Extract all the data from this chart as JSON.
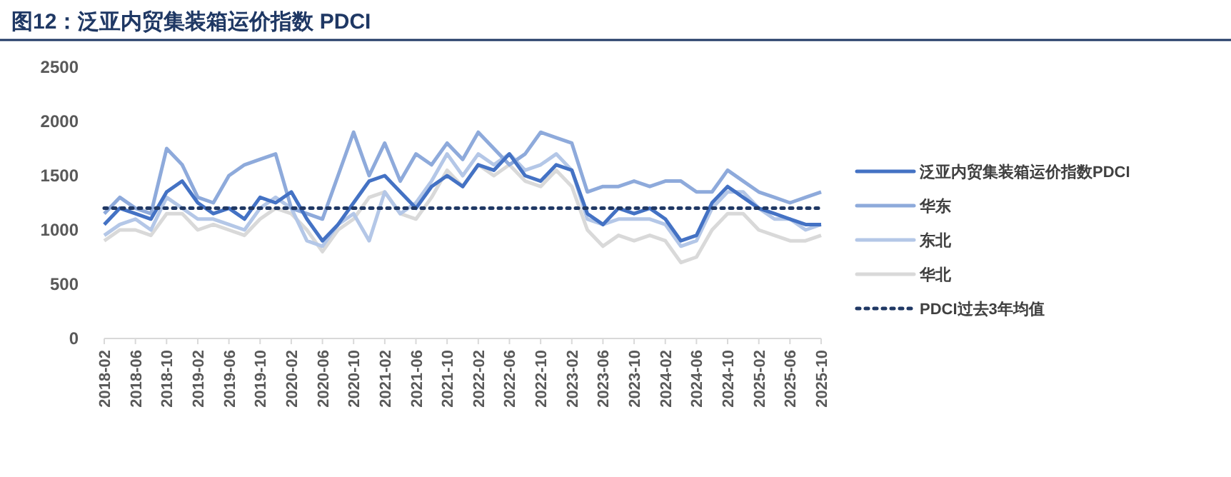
{
  "chart_data": {
    "type": "line",
    "title": "图12：泛亚内贸集装箱运价指数 PDCI",
    "x": [
      "2018-02",
      "2018-04",
      "2018-06",
      "2018-08",
      "2018-10",
      "2018-12",
      "2019-02",
      "2019-04",
      "2019-06",
      "2019-08",
      "2019-10",
      "2019-12",
      "2020-02",
      "2020-04",
      "2020-06",
      "2020-08",
      "2020-10",
      "2020-12",
      "2021-02",
      "2021-04",
      "2021-06",
      "2021-08",
      "2021-10",
      "2021-12",
      "2022-02",
      "2022-04",
      "2022-06",
      "2022-08",
      "2022-10",
      "2022-12",
      "2023-02",
      "2023-04",
      "2023-06",
      "2023-08",
      "2023-10",
      "2023-12",
      "2024-02",
      "2024-04",
      "2024-06",
      "2024-08",
      "2024-10",
      "2024-12",
      "2025-02",
      "2025-04",
      "2025-06",
      "2025-08",
      "2025-10"
    ],
    "series": [
      {
        "name": "泛亚内贸集装箱运价指数PDCI",
        "color": "#4472c4",
        "values": [
          1050,
          1200,
          1150,
          1100,
          1350,
          1450,
          1250,
          1150,
          1200,
          1100,
          1300,
          1250,
          1350,
          1100,
          900,
          1050,
          1250,
          1450,
          1500,
          1350,
          1200,
          1400,
          1500,
          1400,
          1600,
          1550,
          1700,
          1500,
          1450,
          1600,
          1550,
          1150,
          1050,
          1200,
          1150,
          1200,
          1100,
          900,
          950,
          1250,
          1400,
          1300,
          1200,
          1150,
          1100,
          1050,
          1050
        ]
      },
      {
        "name": "华东",
        "color": "#8eaadb",
        "values": [
          1150,
          1300,
          1200,
          1150,
          1750,
          1600,
          1300,
          1250,
          1500,
          1600,
          1650,
          1700,
          1200,
          1150,
          1100,
          1500,
          1900,
          1500,
          1800,
          1450,
          1700,
          1600,
          1800,
          1650,
          1900,
          1750,
          1600,
          1700,
          1900,
          1850,
          1800,
          1350,
          1400,
          1400,
          1450,
          1400,
          1450,
          1450,
          1350,
          1350,
          1550,
          1450,
          1350,
          1300,
          1250,
          1300,
          1350
        ]
      },
      {
        "name": "东北",
        "color": "#b4c7e7",
        "values": [
          950,
          1050,
          1100,
          1000,
          1300,
          1200,
          1100,
          1100,
          1050,
          1000,
          1200,
          1300,
          1200,
          900,
          850,
          1050,
          1150,
          900,
          1350,
          1150,
          1250,
          1450,
          1700,
          1500,
          1700,
          1600,
          1700,
          1550,
          1600,
          1700,
          1550,
          1100,
          1050,
          1100,
          1100,
          1100,
          1050,
          850,
          900,
          1200,
          1350,
          1350,
          1200,
          1100,
          1100,
          1000,
          1050
        ]
      },
      {
        "name": "华北",
        "color": "#d9d9d9",
        "values": [
          900,
          1000,
          1000,
          950,
          1150,
          1150,
          1000,
          1050,
          1000,
          950,
          1100,
          1200,
          1150,
          1000,
          800,
          1000,
          1100,
          1300,
          1350,
          1150,
          1100,
          1300,
          1550,
          1400,
          1600,
          1500,
          1600,
          1450,
          1400,
          1550,
          1400,
          1000,
          850,
          950,
          900,
          950,
          900,
          700,
          750,
          1000,
          1150,
          1150,
          1000,
          950,
          900,
          900,
          950
        ]
      }
    ],
    "ref_lines": [
      {
        "axis": "y",
        "value": 1200,
        "label": "PDCI过去3年均值",
        "color": "#203864",
        "line_style": "dotted"
      }
    ],
    "xlim": [
      "2018-02",
      "2025-10"
    ],
    "xticks": [
      "2018-02",
      "2018-06",
      "2018-10",
      "2019-02",
      "2019-06",
      "2019-10",
      "2020-02",
      "2020-06",
      "2020-10",
      "2021-02",
      "2021-06",
      "2021-10",
      "2022-02",
      "2022-06",
      "2022-10",
      "2023-02",
      "2023-06",
      "2023-10",
      "2024-02",
      "2024-06",
      "2024-10",
      "2025-02",
      "2025-06",
      "2025-10"
    ],
    "ylim": [
      0,
      2500
    ],
    "yticks": [
      0,
      500,
      1000,
      1500,
      2000,
      2500
    ],
    "grid": false,
    "legend": "right",
    "line_style": "solid"
  }
}
